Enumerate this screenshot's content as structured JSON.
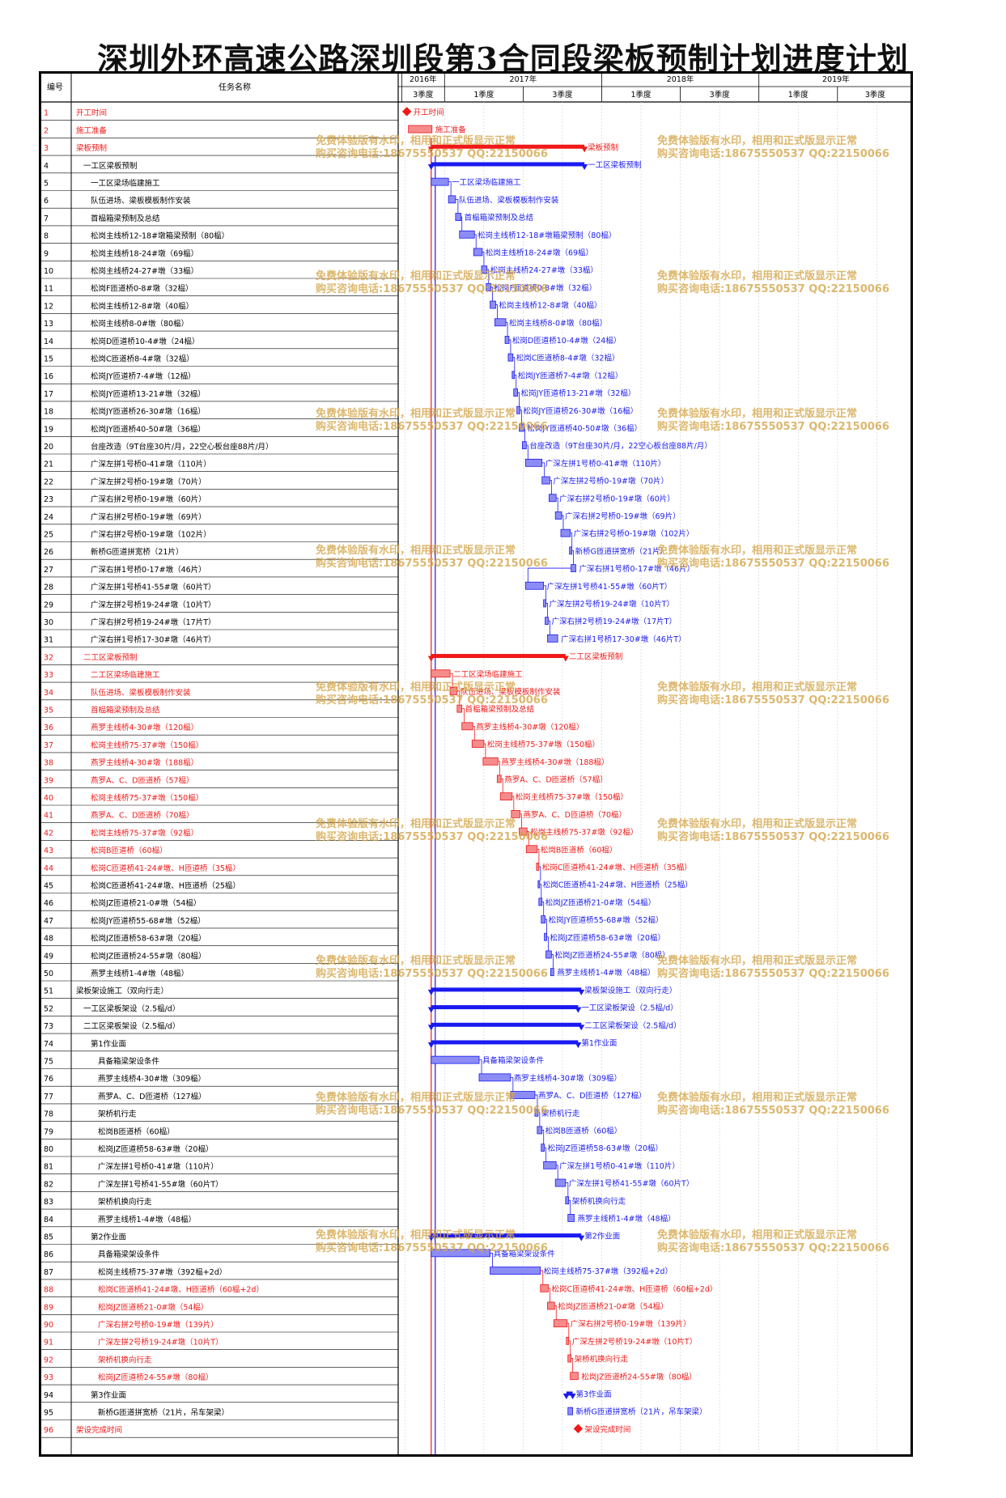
{
  "title": "深圳外环高速公路深圳段第3合同段梁板预制计划进度计划",
  "header": {
    "id_label": "编号",
    "name_label": "任务名称",
    "years": [
      "2016年",
      "2017年",
      "2018年",
      "2019年"
    ],
    "quarters": [
      "3季度",
      "1季度",
      "3季度",
      "1季度",
      "3季度",
      "1季度",
      "3季度"
    ]
  },
  "colors": {
    "blue": "#1a1af0",
    "red": "#f01818",
    "blue_fill": "#8c8cf5",
    "red_fill": "#f58c8c",
    "watermark": "#d4a64a"
  },
  "watermark": [
    "免费体验版有水印，相用和正式版显示正常",
    "购买咨询电话:18675550537 QQ:22150066"
  ],
  "tasks": [
    {
      "id": "1",
      "name": "开工时间",
      "red": true,
      "indent": 0
    },
    {
      "id": "2",
      "name": "施工准备",
      "red": true,
      "indent": 0
    },
    {
      "id": "3",
      "name": "梁板预制",
      "red": true,
      "indent": 0
    },
    {
      "id": "4",
      "name": "一工区梁板预制",
      "red": false,
      "indent": 1
    },
    {
      "id": "5",
      "name": "一工区梁场临建施工",
      "red": false,
      "indent": 2
    },
    {
      "id": "6",
      "name": "队伍进场、梁板模板制作安装",
      "red": false,
      "indent": 2
    },
    {
      "id": "7",
      "name": "首榀箱梁预制及总结",
      "red": false,
      "indent": 2
    },
    {
      "id": "8",
      "name": "松岗主线桥12-18#墩箱梁预制（80榀）",
      "red": false,
      "indent": 2
    },
    {
      "id": "9",
      "name": "松岗主线桥18-24#墩（69榀）",
      "red": false,
      "indent": 2
    },
    {
      "id": "10",
      "name": "松岗主线桥24-27#墩（33榀）",
      "red": false,
      "indent": 2
    },
    {
      "id": "11",
      "name": "松岗F匝道桥0-8#墩（32榀）",
      "red": false,
      "indent": 2
    },
    {
      "id": "12",
      "name": "松岗主线桥12-8#墩（40榀）",
      "red": false,
      "indent": 2
    },
    {
      "id": "13",
      "name": "松岗主线桥8-0#墩（80榀）",
      "red": false,
      "indent": 2
    },
    {
      "id": "14",
      "name": "松岗D匝道桥10-4#墩（24榀）",
      "red": false,
      "indent": 2
    },
    {
      "id": "15",
      "name": "松岗C匝道桥8-4#墩（32榀）",
      "red": false,
      "indent": 2
    },
    {
      "id": "16",
      "name": "松岗JY匝道桥7-4#墩（12榀）",
      "red": false,
      "indent": 2
    },
    {
      "id": "17",
      "name": "松岗JY匝道桥13-21#墩（32榀）",
      "red": false,
      "indent": 2
    },
    {
      "id": "18",
      "name": "松岗JY匝道桥26-30#墩（16榀）",
      "red": false,
      "indent": 2
    },
    {
      "id": "19",
      "name": "松岗JY匝道桥40-50#墩（36榀）",
      "red": false,
      "indent": 2
    },
    {
      "id": "20",
      "name": "台座改造（9T台座30片/月，22空心板台座88片/月）",
      "red": false,
      "indent": 2
    },
    {
      "id": "21",
      "name": "广深左拼1号桥0-41#墩（110片）",
      "red": false,
      "indent": 2
    },
    {
      "id": "22",
      "name": "广深左拼2号桥0-19#墩（70片）",
      "red": false,
      "indent": 2
    },
    {
      "id": "23",
      "name": "广深右拼2号桥0-19#墩（60片）",
      "red": false,
      "indent": 2
    },
    {
      "id": "24",
      "name": "广深右拼2号桥0-19#墩（69片）",
      "red": false,
      "indent": 2
    },
    {
      "id": "25",
      "name": "广深右拼2号桥0-19#墩（102片）",
      "red": false,
      "indent": 2
    },
    {
      "id": "26",
      "name": "新桥G匝道拼宽桥（21片）",
      "red": false,
      "indent": 2
    },
    {
      "id": "27",
      "name": "广深右拼1号桥0-17#墩（46片）",
      "red": false,
      "indent": 2
    },
    {
      "id": "28",
      "name": "广深左拼1号桥41-55#墩（60片T）",
      "red": false,
      "indent": 2
    },
    {
      "id": "29",
      "name": "广深左拼2号桥19-24#墩（10片T）",
      "red": false,
      "indent": 2
    },
    {
      "id": "30",
      "name": "广深右拼2号桥19-24#墩（17片T）",
      "red": false,
      "indent": 2
    },
    {
      "id": "31",
      "name": "广深右拼1号桥17-30#墩（46片T）",
      "red": false,
      "indent": 2
    },
    {
      "id": "32",
      "name": "二工区梁板预制",
      "red": true,
      "indent": 1
    },
    {
      "id": "33",
      "name": "二工区梁场临建施工",
      "red": true,
      "indent": 2
    },
    {
      "id": "34",
      "name": "队伍进场、梁板模板制作安装",
      "red": true,
      "indent": 2
    },
    {
      "id": "35",
      "name": "首榀箱梁预制及总结",
      "red": true,
      "indent": 2
    },
    {
      "id": "36",
      "name": "燕罗主线桥4-30#墩（120榀）",
      "red": true,
      "indent": 2
    },
    {
      "id": "37",
      "name": "松岗主线桥75-37#墩（150榀）",
      "red": true,
      "indent": 2
    },
    {
      "id": "38",
      "name": "燕罗主线桥4-30#墩（188榀）",
      "red": true,
      "indent": 2
    },
    {
      "id": "39",
      "name": "燕罗A、C、D匝道桥（57榀）",
      "red": true,
      "indent": 2
    },
    {
      "id": "40",
      "name": "松岗主线桥75-37#墩（150榀）",
      "red": true,
      "indent": 2
    },
    {
      "id": "41",
      "name": "燕罗A、C、D匝道桥（70榀）",
      "red": true,
      "indent": 2
    },
    {
      "id": "42",
      "name": "松岗主线桥75-37#墩（92榀）",
      "red": true,
      "indent": 2
    },
    {
      "id": "43",
      "name": "松岗B匝道桥（60榀）",
      "red": true,
      "indent": 2
    },
    {
      "id": "44",
      "name": "松岗C匝道桥41-24#墩、H匝道桥（35榀）",
      "red": true,
      "indent": 2
    },
    {
      "id": "45",
      "name": "松岗C匝道桥41-24#墩、H匝道桥（25榀）",
      "red": false,
      "indent": 2
    },
    {
      "id": "46",
      "name": "松岗JZ匝道桥21-0#墩（54榀）",
      "red": false,
      "indent": 2
    },
    {
      "id": "47",
      "name": "松岗JY匝道桥55-68#墩（52榀）",
      "red": false,
      "indent": 2
    },
    {
      "id": "48",
      "name": "松岗JZ匝道桥58-63#墩（20榀）",
      "red": false,
      "indent": 2
    },
    {
      "id": "49",
      "name": "松岗JZ匝道桥24-55#墩（80榀）",
      "red": false,
      "indent": 2
    },
    {
      "id": "50",
      "name": "燕罗主线桥1-4#墩（48榀）",
      "red": false,
      "indent": 2
    },
    {
      "id": "51",
      "name": "梁板架设施工（双向行走）",
      "red": false,
      "indent": 0
    },
    {
      "id": "52",
      "name": "一工区梁板架设（2.5榀/d）",
      "red": false,
      "indent": 1
    },
    {
      "id": "73",
      "name": "二工区梁板架设（2.5榀/d）",
      "red": false,
      "indent": 1
    },
    {
      "id": "74",
      "name": "第1作业面",
      "red": false,
      "indent": 2
    },
    {
      "id": "75",
      "name": "具备箱梁架设条件",
      "red": false,
      "indent": 3
    },
    {
      "id": "76",
      "name": "燕罗主线桥4-30#墩（309榀）",
      "red": false,
      "indent": 3
    },
    {
      "id": "77",
      "name": "燕罗A、C、D匝道桥（127榀）",
      "red": false,
      "indent": 3
    },
    {
      "id": "78",
      "name": "架桥机行走",
      "red": false,
      "indent": 3
    },
    {
      "id": "79",
      "name": "松岗B匝道桥（60榀）",
      "red": false,
      "indent": 3
    },
    {
      "id": "80",
      "name": "松岗JZ匝道桥58-63#墩（20榀）",
      "red": false,
      "indent": 3
    },
    {
      "id": "81",
      "name": "广深左拼1号桥0-41#墩（110片）",
      "red": false,
      "indent": 3
    },
    {
      "id": "82",
      "name": "广深左拼1号桥41-55#墩（60片T）",
      "red": false,
      "indent": 3
    },
    {
      "id": "83",
      "name": "架桥机换向行走",
      "red": false,
      "indent": 3
    },
    {
      "id": "84",
      "name": "燕罗主线桥1-4#墩（48榀）",
      "red": false,
      "indent": 3
    },
    {
      "id": "85",
      "name": "第2作业面",
      "red": false,
      "indent": 2
    },
    {
      "id": "86",
      "name": "具备箱梁架设条件",
      "red": false,
      "indent": 3
    },
    {
      "id": "87",
      "name": "松岗主线桥75-37#墩（392榀+2d）",
      "red": false,
      "indent": 3
    },
    {
      "id": "88",
      "name": "松岗C匝道桥41-24#墩、H匝道桥（60榀+2d）",
      "red": true,
      "indent": 3
    },
    {
      "id": "89",
      "name": "松岗JZ匝道桥21-0#墩（54榀）",
      "red": true,
      "indent": 3
    },
    {
      "id": "90",
      "name": "广深右拼2号桥0-19#墩（139片）",
      "red": true,
      "indent": 3
    },
    {
      "id": "91",
      "name": "广深左拼2号桥19-24#墩（10片T）",
      "red": true,
      "indent": 3
    },
    {
      "id": "92",
      "name": "架桥机换向行走",
      "red": true,
      "indent": 3
    },
    {
      "id": "93",
      "name": "松岗JZ匝道桥24-55#墩（80榀）",
      "red": true,
      "indent": 3
    },
    {
      "id": "94",
      "name": "第3作业面",
      "red": false,
      "indent": 2
    },
    {
      "id": "95",
      "name": "新桥G匝道拼宽桥（21片，吊车架梁）",
      "red": false,
      "indent": 3
    },
    {
      "id": "96",
      "name": "架设完成时间",
      "red": true,
      "indent": 0
    }
  ],
  "bars": [
    {
      "type": "milestone",
      "s": 0.01,
      "red": true
    },
    {
      "type": "task",
      "s": 0.02,
      "e": 0.17,
      "red": true
    },
    {
      "type": "summary",
      "s": 0.165,
      "e": 1.14,
      "red": true
    },
    {
      "type": "summary",
      "s": 0.165,
      "e": 1.14,
      "red": false
    },
    {
      "type": "task",
      "s": 0.165,
      "e": 0.275,
      "red": false
    },
    {
      "type": "task",
      "s": 0.275,
      "e": 0.32,
      "red": false
    },
    {
      "type": "task",
      "s": 0.32,
      "e": 0.355,
      "red": false
    },
    {
      "type": "task",
      "s": 0.345,
      "e": 0.44,
      "red": false
    },
    {
      "type": "task",
      "s": 0.435,
      "e": 0.49,
      "red": false
    },
    {
      "type": "task",
      "s": 0.485,
      "e": 0.52,
      "red": false
    },
    {
      "type": "task",
      "s": 0.515,
      "e": 0.545,
      "red": false
    },
    {
      "type": "task",
      "s": 0.54,
      "e": 0.575,
      "red": false
    },
    {
      "type": "task",
      "s": 0.57,
      "e": 0.64,
      "red": false
    },
    {
      "type": "task",
      "s": 0.635,
      "e": 0.66,
      "red": false
    },
    {
      "type": "task",
      "s": 0.655,
      "e": 0.685,
      "red": false
    },
    {
      "type": "task",
      "s": 0.68,
      "e": 0.695,
      "red": false
    },
    {
      "type": "task",
      "s": 0.69,
      "e": 0.715,
      "red": false
    },
    {
      "type": "task",
      "s": 0.71,
      "e": 0.73,
      "red": false
    },
    {
      "type": "task",
      "s": 0.725,
      "e": 0.755,
      "red": false
    },
    {
      "type": "task",
      "s": 0.745,
      "e": 0.77,
      "red": false
    },
    {
      "type": "task",
      "s": 0.765,
      "e": 0.87,
      "red": false
    },
    {
      "type": "task",
      "s": 0.87,
      "e": 0.92,
      "red": false
    },
    {
      "type": "task",
      "s": 0.915,
      "e": 0.96,
      "red": false
    },
    {
      "type": "task",
      "s": 0.955,
      "e": 0.995,
      "red": false
    },
    {
      "type": "task",
      "s": 0.99,
      "e": 1.05,
      "red": false
    },
    {
      "type": "task",
      "s": 1.045,
      "e": 1.06,
      "red": false
    },
    {
      "type": "task",
      "s": 1.055,
      "e": 1.085,
      "red": false
    },
    {
      "type": "task",
      "s": 0.765,
      "e": 0.88,
      "red": false
    },
    {
      "type": "task",
      "s": 0.88,
      "e": 0.895,
      "red": false
    },
    {
      "type": "task",
      "s": 0.89,
      "e": 0.91,
      "red": false
    },
    {
      "type": "task",
      "s": 0.905,
      "e": 0.97,
      "red": false
    },
    {
      "type": "summary",
      "s": 0.165,
      "e": 1.02,
      "red": true
    },
    {
      "type": "task",
      "s": 0.165,
      "e": 0.285,
      "red": true
    },
    {
      "type": "task",
      "s": 0.285,
      "e": 0.33,
      "red": true
    },
    {
      "type": "task",
      "s": 0.33,
      "e": 0.36,
      "red": true
    },
    {
      "type": "task",
      "s": 0.36,
      "e": 0.43,
      "red": true
    },
    {
      "type": "task",
      "s": 0.425,
      "e": 0.5,
      "red": true
    },
    {
      "type": "task",
      "s": 0.495,
      "e": 0.59,
      "red": true
    },
    {
      "type": "task",
      "s": 0.585,
      "e": 0.61,
      "red": true
    },
    {
      "type": "task",
      "s": 0.605,
      "e": 0.68,
      "red": true
    },
    {
      "type": "task",
      "s": 0.675,
      "e": 0.73,
      "red": true
    },
    {
      "type": "task",
      "s": 0.725,
      "e": 0.775,
      "red": true
    },
    {
      "type": "task",
      "s": 0.77,
      "e": 0.84,
      "red": true
    },
    {
      "type": "task",
      "s": 0.835,
      "e": 0.85,
      "red": true
    },
    {
      "type": "task",
      "s": 0.845,
      "e": 0.855,
      "red": false
    },
    {
      "type": "task",
      "s": 0.85,
      "e": 0.87,
      "red": false
    },
    {
      "type": "task",
      "s": 0.865,
      "e": 0.89,
      "red": false
    },
    {
      "type": "task",
      "s": 0.885,
      "e": 0.9,
      "red": false
    },
    {
      "type": "task",
      "s": 0.895,
      "e": 0.93,
      "red": false
    },
    {
      "type": "task",
      "s": 0.925,
      "e": 0.945,
      "red": false
    },
    {
      "type": "summary",
      "s": 0.165,
      "e": 1.12,
      "red": false
    },
    {
      "type": "summary",
      "s": 0.165,
      "e": 1.1,
      "red": false
    },
    {
      "type": "summary",
      "s": 0.165,
      "e": 1.12,
      "red": false
    },
    {
      "type": "summary",
      "s": 0.165,
      "e": 1.1,
      "red": false
    },
    {
      "type": "task",
      "s": 0.165,
      "e": 0.47,
      "red": false
    },
    {
      "type": "task",
      "s": 0.47,
      "e": 0.67,
      "red": false
    },
    {
      "type": "task",
      "s": 0.67,
      "e": 0.825,
      "red": false
    },
    {
      "type": "task",
      "s": 0.825,
      "e": 0.845,
      "red": false
    },
    {
      "type": "task",
      "s": 0.84,
      "e": 0.87,
      "red": false
    },
    {
      "type": "task",
      "s": 0.865,
      "e": 0.885,
      "red": false
    },
    {
      "type": "task",
      "s": 0.88,
      "e": 0.96,
      "red": false
    },
    {
      "type": "task",
      "s": 0.955,
      "e": 1.02,
      "red": false
    },
    {
      "type": "task",
      "s": 1.02,
      "e": 1.04,
      "red": false
    },
    {
      "type": "task",
      "s": 1.035,
      "e": 1.075,
      "red": false
    },
    {
      "type": "summary",
      "s": 0.165,
      "e": 1.12,
      "red": false
    },
    {
      "type": "task",
      "s": 0.165,
      "e": 0.54,
      "red": false
    },
    {
      "type": "task",
      "s": 0.54,
      "e": 0.86,
      "red": false
    },
    {
      "type": "task",
      "s": 0.86,
      "e": 0.91,
      "red": true
    },
    {
      "type": "task",
      "s": 0.905,
      "e": 0.95,
      "red": true
    },
    {
      "type": "task",
      "s": 0.945,
      "e": 1.03,
      "red": true
    },
    {
      "type": "task",
      "s": 1.025,
      "e": 1.04,
      "red": true
    },
    {
      "type": "task",
      "s": 1.035,
      "e": 1.055,
      "red": true
    },
    {
      "type": "task",
      "s": 1.05,
      "e": 1.1,
      "red": true
    },
    {
      "type": "summary",
      "s": 1.025,
      "e": 1.065,
      "red": false
    },
    {
      "type": "task",
      "s": 1.035,
      "e": 1.065,
      "red": false
    },
    {
      "type": "milestone",
      "s": 1.1,
      "red": true
    }
  ]
}
